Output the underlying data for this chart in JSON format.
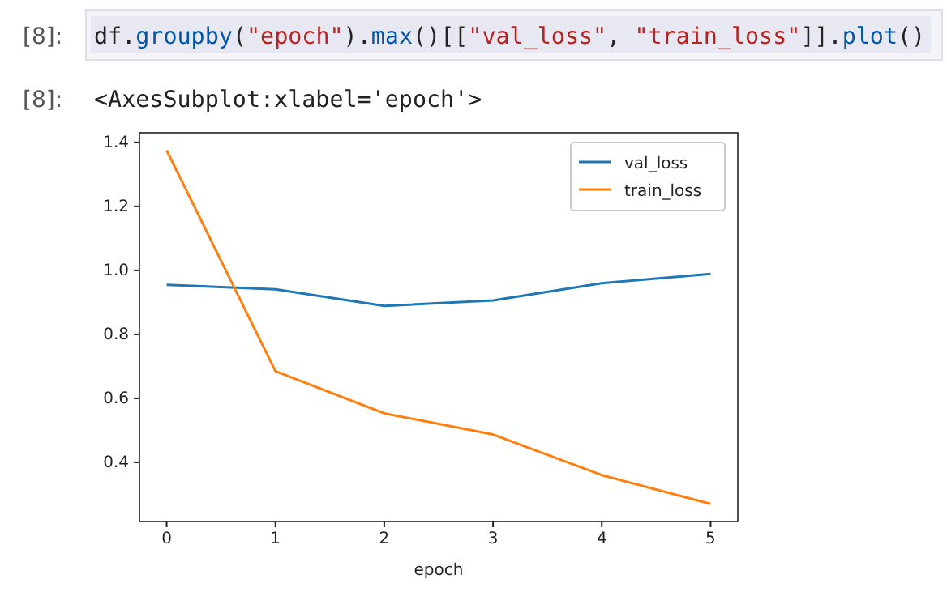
{
  "chart_data": {
    "type": "line",
    "xlabel": "epoch",
    "annotations": [
      "[8]:",
      "df.groupby(\"epoch\").max()[[\"val_loss\", \"train_loss\"]].plot()",
      "[8]:",
      "<AxesSubplot:xlabel='epoch'>"
    ],
    "x": [
      0,
      1,
      2,
      3,
      4,
      5
    ],
    "series": [
      {
        "name": "val_loss",
        "color": "#1f77b4",
        "values": [
          0.955,
          0.941,
          0.889,
          0.906,
          0.96,
          0.989
        ]
      },
      {
        "name": "train_loss",
        "color": "#ff7f0e",
        "values": [
          1.375,
          0.685,
          0.553,
          0.487,
          0.36,
          0.27
        ]
      }
    ],
    "xlim": [
      -0.25,
      5.25
    ],
    "ylim": [
      0.215,
      1.43
    ],
    "xticks": [
      0,
      1,
      2,
      3,
      4,
      5
    ],
    "yticks": [
      0.4,
      0.6,
      0.8,
      {
        "value": 1,
        "label": "1.0"
      },
      1.2,
      1.4
    ],
    "legend": "top right",
    "marker": "none",
    "line_style": "solid",
    "grid": false
  }
}
